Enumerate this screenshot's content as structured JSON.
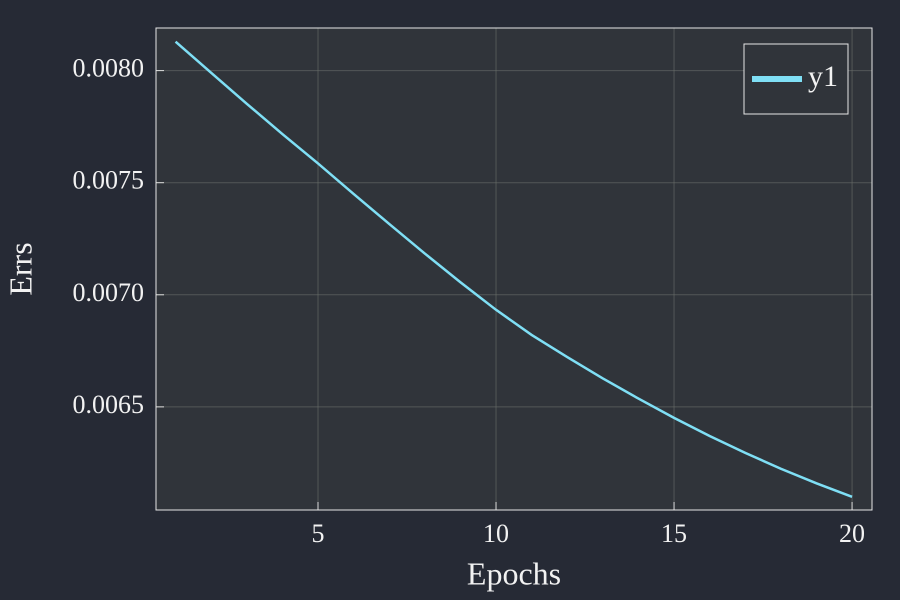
{
  "chart_data": {
    "type": "line",
    "x_label": "Epochs",
    "y_label": "Errs",
    "x": [
      1,
      2,
      3,
      4,
      5,
      6,
      7,
      8,
      9,
      10,
      11,
      12,
      13,
      14,
      15,
      16,
      17,
      18,
      19,
      20
    ],
    "series": [
      {
        "name": "y1",
        "color": "#7fdff5",
        "values": [
          0.008129,
          0.00799,
          0.007852,
          0.007717,
          0.007586,
          0.00745,
          0.007316,
          0.007184,
          0.007056,
          0.006933,
          0.006821,
          0.006722,
          0.006627,
          0.006537,
          0.006451,
          0.00637,
          0.006295,
          0.006224,
          0.006159,
          0.006099
        ]
      }
    ],
    "xlim": [
      0.45,
      20.56
    ],
    "ylim": [
      0.00604,
      0.00819
    ],
    "xticks": [
      5,
      10,
      15,
      20
    ],
    "yticks": [
      {
        "value": 0.0065,
        "label": "0.0065"
      },
      {
        "value": 0.007,
        "label": "0.0070"
      },
      {
        "value": 0.0075,
        "label": "0.0075"
      },
      {
        "value": 0.008,
        "label": "0.0080"
      }
    ],
    "grid": true,
    "legend": "top-right"
  }
}
